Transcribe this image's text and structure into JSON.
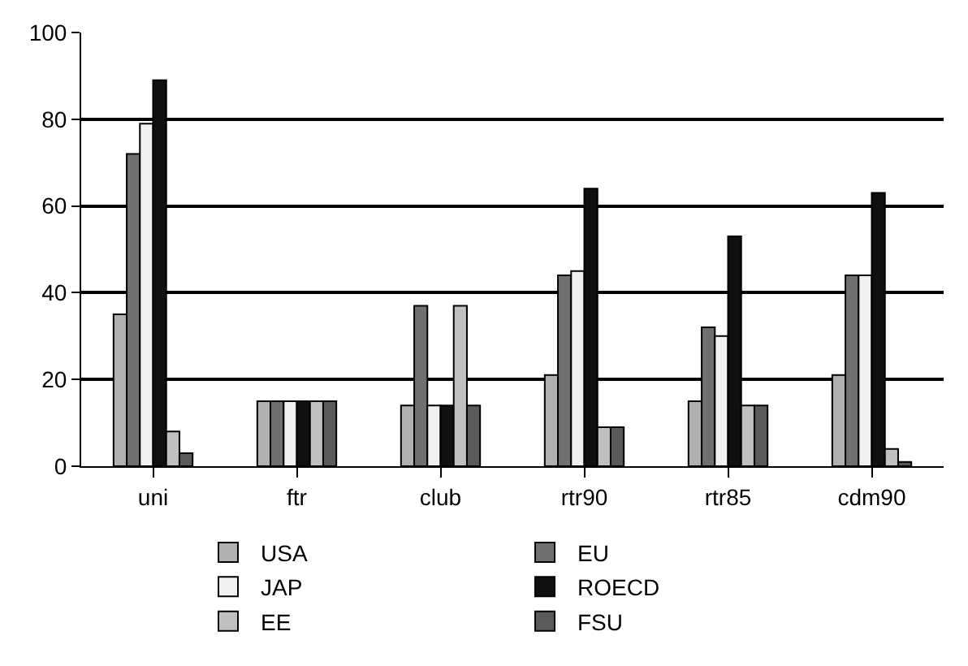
{
  "chart_data": {
    "type": "bar",
    "categories": [
      "uni",
      "ftr",
      "club",
      "rtr90",
      "rtr85",
      "cdm90"
    ],
    "series": [
      {
        "name": "USA",
        "color": "#b0b0b0",
        "values": [
          35,
          15,
          14,
          21,
          15,
          21
        ]
      },
      {
        "name": "EU",
        "color": "#707070",
        "values": [
          72,
          15,
          37,
          44,
          32,
          44
        ]
      },
      {
        "name": "JAP",
        "color": "#f0f0f0",
        "values": [
          79,
          15,
          14,
          45,
          30,
          44
        ]
      },
      {
        "name": "ROECD",
        "color": "#101010",
        "values": [
          89,
          15,
          14,
          64,
          53,
          63
        ]
      },
      {
        "name": "EE",
        "color": "#c0c0c0",
        "values": [
          8,
          15,
          37,
          9,
          14,
          4
        ]
      },
      {
        "name": "FSU",
        "color": "#5a5a5a",
        "values": [
          3,
          15,
          14,
          9,
          14,
          1
        ]
      }
    ],
    "ylim": [
      0,
      100
    ],
    "yticks": [
      0,
      20,
      40,
      60,
      80,
      100
    ],
    "grid": "y",
    "legend": "bottom"
  }
}
